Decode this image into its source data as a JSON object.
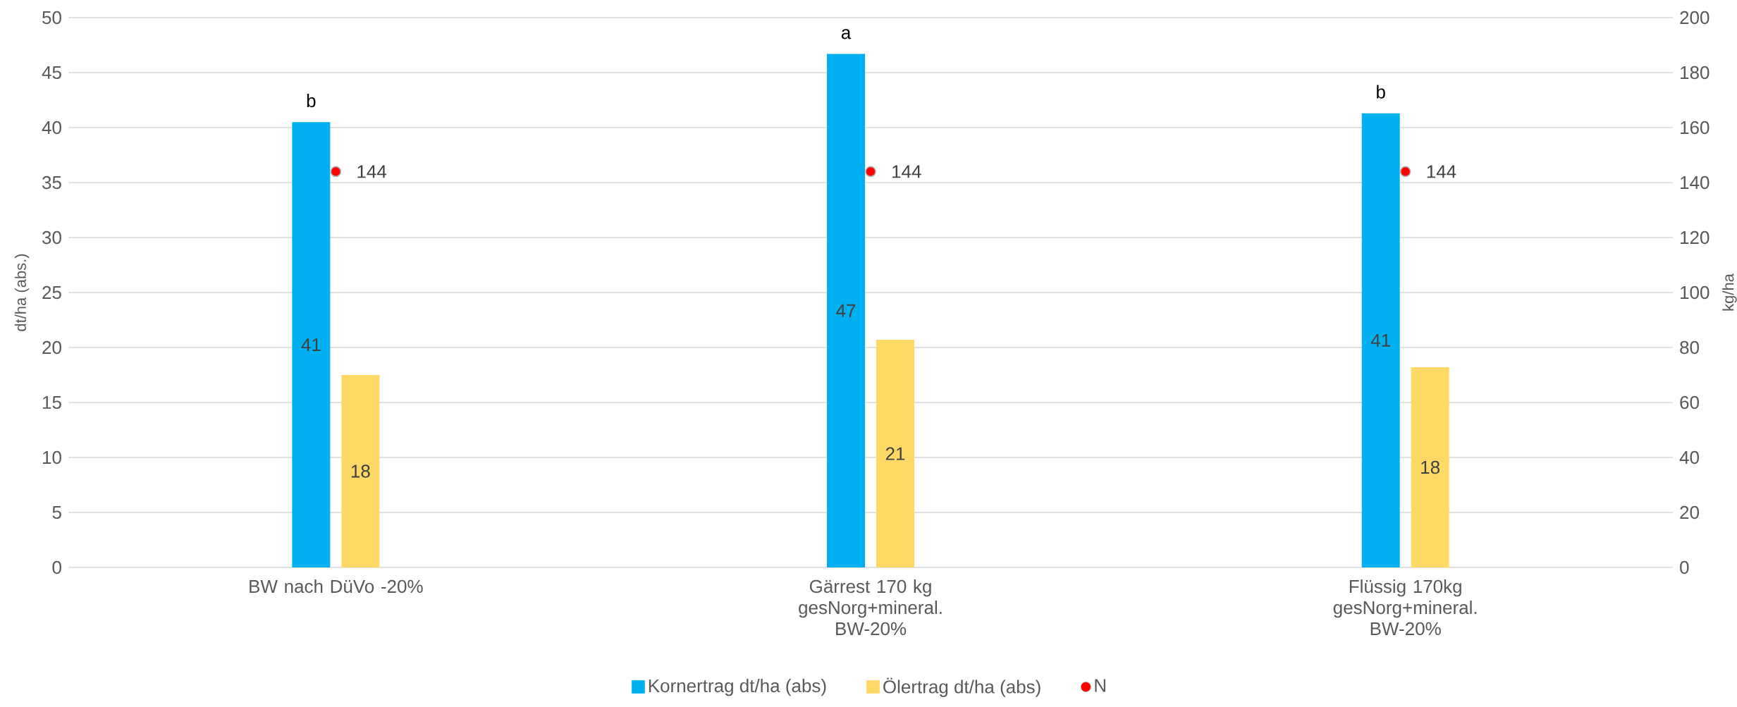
{
  "chart_data": {
    "type": "bar",
    "categories": [
      "BW nach DüVo -20%",
      "Gärrest 170 kg gesNorg+mineral. BW-20%",
      "Flüssig 170kg gesNorg+mineral. BW-20%"
    ],
    "series": [
      {
        "name": "Kornertrag dt/ha (abs)",
        "color": "#00b0f0",
        "values": [
          40.5,
          46.7,
          41.3
        ],
        "value_labels": [
          "41",
          "47",
          "41"
        ]
      },
      {
        "name": "Ölertrag dt/ha (abs)",
        "color": "#ffd966",
        "values": [
          17.5,
          20.7,
          18.2
        ],
        "value_labels": [
          "18",
          "21",
          "18"
        ]
      },
      {
        "name": "N",
        "type": "scatter",
        "axis": "y2",
        "color": "#ff0000",
        "marker": "circle",
        "values": [
          144,
          144,
          144
        ],
        "value_labels": [
          "144",
          "144",
          "144"
        ]
      }
    ],
    "ylabel": "dt/ha (abs.)",
    "y2label": "kg/ha",
    "ylim": [
      0,
      50
    ],
    "yticks": [
      0,
      5,
      10,
      15,
      20,
      25,
      30,
      35,
      40,
      45,
      50
    ],
    "y2lim": [
      0,
      200
    ],
    "y2ticks": [
      0,
      20,
      40,
      60,
      80,
      100,
      120,
      140,
      160,
      180,
      200
    ],
    "grid": "y",
    "legend": "bottom",
    "annotations": [
      "b",
      "a",
      "b"
    ]
  }
}
